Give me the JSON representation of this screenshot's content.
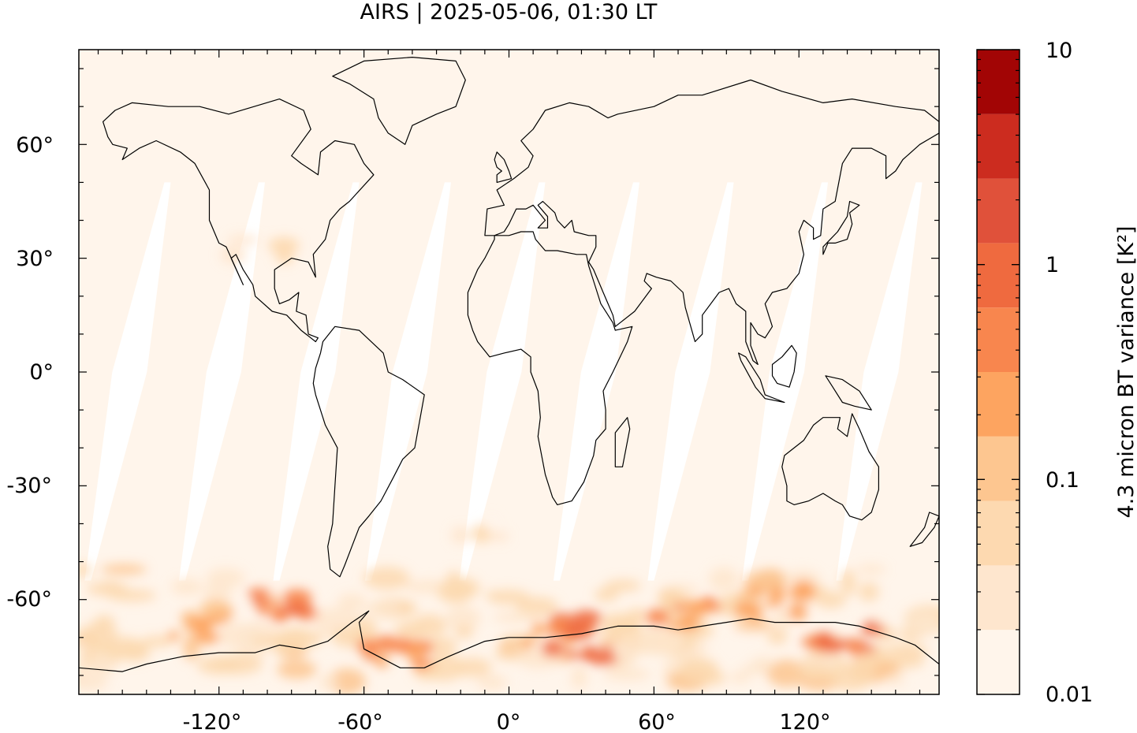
{
  "title": "AIRS | 2025-05-06, 01:30 LT",
  "map": {
    "projection": "equirectangular",
    "lon_range": [
      -178,
      178
    ],
    "lat_range": [
      -85,
      85
    ],
    "x_ticks": [
      {
        "value": -120,
        "label": "-120°"
      },
      {
        "value": -60,
        "label": "-60°"
      },
      {
        "value": 0,
        "label": "0°"
      },
      {
        "value": 60,
        "label": "60°"
      },
      {
        "value": 120,
        "label": "120°"
      }
    ],
    "y_ticks": [
      {
        "value": 60,
        "label": "60°"
      },
      {
        "value": 30,
        "label": "30°"
      },
      {
        "value": 0,
        "label": "0°"
      },
      {
        "value": -30,
        "label": "-30°"
      },
      {
        "value": -60,
        "label": "-60°"
      }
    ],
    "background_color": "#fff5eb",
    "no_data_color": "#ffffff",
    "coastline_color": "#000000"
  },
  "colorbar": {
    "label": "4.3 micron BT variance [K²]",
    "scale": "log",
    "range": [
      0.01,
      10
    ],
    "tick_labels": [
      {
        "value": 10,
        "label": "10"
      },
      {
        "value": 1,
        "label": "1"
      },
      {
        "value": 0.1,
        "label": "0.1"
      },
      {
        "value": 0.01,
        "label": "0.01"
      }
    ],
    "levels": [
      0.01,
      0.02,
      0.04,
      0.07,
      0.15,
      0.3,
      0.6,
      1.2,
      2.5,
      5,
      10
    ],
    "colors": [
      "#fff5eb",
      "#fee6ce",
      "#fdd9b0",
      "#fdc690",
      "#fda460",
      "#f8864e",
      "#ef6a3f",
      "#e0513a",
      "#cc2c1f",
      "#a20505"
    ]
  },
  "chart_data": {
    "type": "heatmap",
    "title": "AIRS | 2025-05-06, 01:30 LT",
    "variable": "4.3 micron BT variance [K²]",
    "x_range": [
      -178,
      178
    ],
    "y_range": [
      -85,
      85
    ],
    "swath_gap_centers_lon_at_equator": [
      -157,
      -118,
      -79,
      -41,
      -2,
      37,
      76,
      115,
      154
    ],
    "swath_gap_lat_range": [
      -55,
      50
    ],
    "high_variance_regions": [
      {
        "lon": -128,
        "lat": -66,
        "value": 0.3
      },
      {
        "lon": -92,
        "lat": -60,
        "value": 0.6
      },
      {
        "lon": -48,
        "lat": -74,
        "value": 0.6
      },
      {
        "lon": 20,
        "lat": -68,
        "value": 0.7
      },
      {
        "lon": 30,
        "lat": -72,
        "value": 0.9
      },
      {
        "lon": 72,
        "lat": -64,
        "value": 0.4
      },
      {
        "lon": 140,
        "lat": -69,
        "value": 0.9
      },
      {
        "lon": 110,
        "lat": -60,
        "value": 0.3
      },
      {
        "lon": -102,
        "lat": 33,
        "value": 0.04
      },
      {
        "lon": -8,
        "lat": -43,
        "value": 0.05
      }
    ],
    "xlabel": "",
    "ylabel": ""
  }
}
